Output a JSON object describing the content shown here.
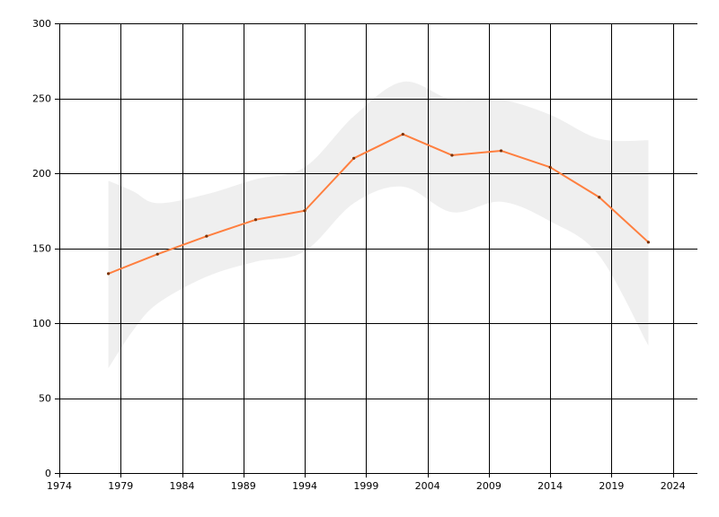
{
  "chart_data": {
    "type": "line",
    "title": "",
    "xlabel": "",
    "ylabel": "",
    "xlim": [
      1974,
      2026
    ],
    "ylim": [
      0,
      300
    ],
    "x_ticks": [
      1974,
      1979,
      1984,
      1989,
      1994,
      1999,
      2004,
      2009,
      2014,
      2019,
      2024
    ],
    "y_ticks": [
      0,
      50,
      100,
      150,
      200,
      250,
      300
    ],
    "grid": true,
    "legend": "none",
    "series": [
      {
        "values": [
          {
            "x": 1978,
            "y": 133
          },
          {
            "x": 1982,
            "y": 146
          },
          {
            "x": 1986,
            "y": 158
          },
          {
            "x": 1990,
            "y": 169
          },
          {
            "x": 1994,
            "y": 175
          },
          {
            "x": 1998,
            "y": 210
          },
          {
            "x": 2002,
            "y": 226
          },
          {
            "x": 2006,
            "y": 212
          },
          {
            "x": 2010,
            "y": 215
          },
          {
            "x": 2014,
            "y": 204
          },
          {
            "x": 2018,
            "y": 184
          },
          {
            "x": 2022,
            "y": 154
          }
        ],
        "color": "#ff7f3f"
      }
    ],
    "band": {
      "upper": [
        {
          "x": 1978,
          "y": 195
        },
        {
          "x": 1980,
          "y": 188
        },
        {
          "x": 1982,
          "y": 180
        },
        {
          "x": 1986,
          "y": 186
        },
        {
          "x": 1990,
          "y": 196
        },
        {
          "x": 1994,
          "y": 204
        },
        {
          "x": 1998,
          "y": 238
        },
        {
          "x": 2002,
          "y": 261
        },
        {
          "x": 2006,
          "y": 249
        },
        {
          "x": 2010,
          "y": 249
        },
        {
          "x": 2014,
          "y": 239
        },
        {
          "x": 2018,
          "y": 223
        },
        {
          "x": 2022,
          "y": 222
        }
      ],
      "lower": [
        {
          "x": 1978,
          "y": 70
        },
        {
          "x": 1980,
          "y": 95
        },
        {
          "x": 1982,
          "y": 113
        },
        {
          "x": 1986,
          "y": 131
        },
        {
          "x": 1990,
          "y": 141
        },
        {
          "x": 1994,
          "y": 148
        },
        {
          "x": 1998,
          "y": 180
        },
        {
          "x": 2002,
          "y": 191
        },
        {
          "x": 2006,
          "y": 174
        },
        {
          "x": 2010,
          "y": 181
        },
        {
          "x": 2014,
          "y": 168
        },
        {
          "x": 2018,
          "y": 145
        },
        {
          "x": 2022,
          "y": 85
        }
      ],
      "color": "#efefef"
    }
  }
}
